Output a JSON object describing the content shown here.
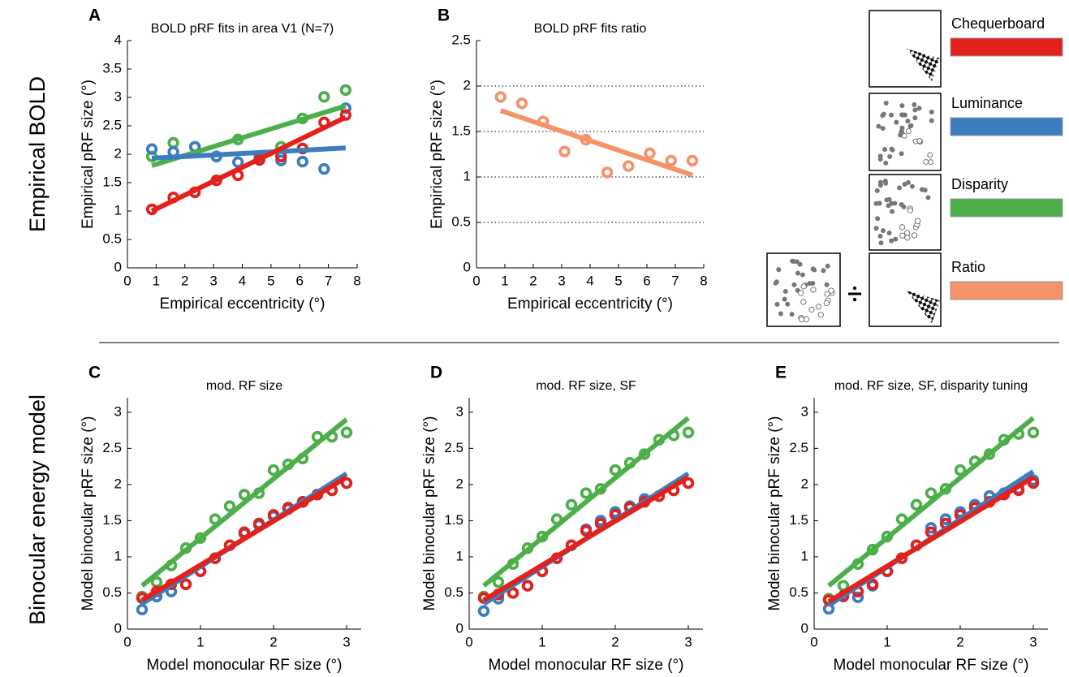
{
  "row_labels": [
    "Empirical BOLD",
    "Binocular energy model"
  ],
  "chart_data": [
    {
      "type": "scatter",
      "panel": "A",
      "title": "BOLD pRF fits in area V1 (N=7)",
      "x_label": "Empirical eccentricity (°)",
      "y_label": "Empirical pRF size (°)",
      "x": [
        0.85,
        1.6,
        2.35,
        3.1,
        3.85,
        4.6,
        5.35,
        6.1,
        6.85,
        7.6
      ],
      "fit_x": [
        0.85,
        7.6
      ],
      "series": [
        {
          "name": "Chequerboard",
          "color": "#e3201b",
          "values": [
            1.03,
            1.24,
            1.33,
            1.54,
            1.63,
            1.9,
            1.96,
            2.1,
            2.56,
            2.69
          ],
          "fit": [
            1.0,
            2.65
          ]
        },
        {
          "name": "Luminance",
          "color": "#3a7ebf",
          "values": [
            2.09,
            2.04,
            2.13,
            1.96,
            1.86,
            1.94,
            1.89,
            1.87,
            1.74,
            2.81
          ],
          "fit": [
            1.93,
            2.11
          ]
        },
        {
          "name": "Disparity",
          "color": "#4daf4a",
          "values": [
            1.96,
            2.2,
            2.13,
            1.96,
            2.26,
            1.96,
            2.13,
            2.63,
            3.01,
            3.13
          ],
          "fit": [
            1.8,
            2.85
          ]
        }
      ],
      "xlim": [
        0,
        8
      ],
      "ylim": [
        0,
        4
      ],
      "xticks": [
        0,
        1,
        2,
        3,
        4,
        5,
        6,
        7,
        8
      ],
      "yticks": [
        0,
        0.5,
        1,
        1.5,
        2,
        2.5,
        3,
        3.5,
        4
      ],
      "grid": false
    },
    {
      "type": "scatter",
      "panel": "B",
      "title": "BOLD pRF fits ratio",
      "x_label": "Empirical eccentricity (°)",
      "y_label": "Empirical pRF size (°)",
      "x": [
        0.85,
        1.6,
        2.35,
        3.1,
        3.85,
        4.6,
        5.35,
        6.1,
        6.85,
        7.6
      ],
      "fit_x": [
        0.85,
        7.6
      ],
      "series": [
        {
          "name": "Ratio",
          "color": "#f4926a",
          "values": [
            1.88,
            1.81,
            1.61,
            1.28,
            1.41,
            1.05,
            1.12,
            1.26,
            1.18,
            1.18
          ],
          "fit": [
            1.73,
            1.02
          ]
        }
      ],
      "xlim": [
        0,
        8
      ],
      "ylim": [
        0,
        2.5
      ],
      "xticks": [
        0,
        1,
        2,
        3,
        4,
        5,
        6,
        7,
        8
      ],
      "yticks": [
        0,
        0.5,
        1,
        1.5,
        2,
        2.5
      ],
      "grid": true
    },
    {
      "type": "scatter",
      "panel": "C",
      "title": "mod. RF size",
      "x_label": "Model monocular RF size (°)",
      "y_label": "Model binocular pRF size (°)",
      "x": [
        0.2,
        0.4,
        0.6,
        0.8,
        1.0,
        1.2,
        1.4,
        1.6,
        1.8,
        2.0,
        2.2,
        2.4,
        2.6,
        2.8,
        3.0
      ],
      "fit_x": [
        0.2,
        3.0
      ],
      "series": [
        {
          "color": "#e3201b",
          "values": [
            0.43,
            0.52,
            0.62,
            0.62,
            0.8,
            0.98,
            1.16,
            1.34,
            1.46,
            1.58,
            1.68,
            1.76,
            1.86,
            1.92,
            2.02
          ],
          "fit": [
            0.4,
            2.1
          ]
        },
        {
          "color": "#3a7ebf",
          "values": [
            0.27,
            0.45,
            0.52,
            0.62,
            0.8,
            0.98,
            1.16,
            1.32,
            1.44,
            1.56,
            1.66,
            1.76,
            1.86,
            1.92,
            2.02
          ],
          "fit": [
            0.35,
            2.15
          ]
        },
        {
          "color": "#4daf4a",
          "values": [
            0.45,
            0.65,
            0.88,
            1.12,
            1.26,
            1.52,
            1.7,
            1.86,
            1.88,
            2.2,
            2.28,
            2.36,
            2.66,
            2.66,
            2.72
          ],
          "fit": [
            0.6,
            2.9
          ]
        }
      ],
      "xlim": [
        0,
        3.2
      ],
      "ylim": [
        0,
        3.2
      ],
      "xticks": [
        0,
        1,
        2,
        3
      ],
      "yticks": [
        0,
        0.5,
        1,
        1.5,
        2,
        2.5,
        3
      ],
      "grid": false
    },
    {
      "type": "scatter",
      "panel": "D",
      "title": "mod. RF size, SF",
      "x_label": "Model monocular RF size (°)",
      "y_label": "Model binocular pRF size (°)",
      "x": [
        0.2,
        0.4,
        0.6,
        0.8,
        1.0,
        1.2,
        1.4,
        1.6,
        1.8,
        2.0,
        2.2,
        2.4,
        2.6,
        2.8,
        3.0
      ],
      "fit_x": [
        0.2,
        3.0
      ],
      "series": [
        {
          "color": "#e3201b",
          "values": [
            0.43,
            0.48,
            0.5,
            0.6,
            0.8,
            0.98,
            1.16,
            1.36,
            1.46,
            1.58,
            1.68,
            1.76,
            1.84,
            1.92,
            2.02
          ],
          "fit": [
            0.4,
            2.1
          ]
        },
        {
          "color": "#3a7ebf",
          "values": [
            0.25,
            0.42,
            0.5,
            0.6,
            0.8,
            0.98,
            1.16,
            1.38,
            1.5,
            1.62,
            1.7,
            1.8,
            1.84,
            1.92,
            2.02
          ],
          "fit": [
            0.35,
            2.15
          ]
        },
        {
          "color": "#4daf4a",
          "values": [
            0.45,
            0.65,
            0.9,
            1.12,
            1.28,
            1.52,
            1.72,
            1.88,
            1.94,
            2.2,
            2.3,
            2.42,
            2.62,
            2.68,
            2.72
          ],
          "fit": [
            0.6,
            2.92
          ]
        }
      ],
      "xlim": [
        0,
        3.2
      ],
      "ylim": [
        0,
        3.2
      ],
      "xticks": [
        0,
        1,
        2,
        3
      ],
      "yticks": [
        0,
        0.5,
        1,
        1.5,
        2,
        2.5,
        3
      ],
      "grid": false
    },
    {
      "type": "scatter",
      "panel": "E",
      "title": "mod. RF size, SF, disparity tuning",
      "x_label": "Model monocular RF size (°)",
      "y_label": "Model binocular pRF size (°)",
      "x": [
        0.2,
        0.4,
        0.6,
        0.8,
        1.0,
        1.2,
        1.4,
        1.6,
        1.8,
        2.0,
        2.2,
        2.4,
        2.6,
        2.8,
        3.0
      ],
      "fit_x": [
        0.2,
        3.0
      ],
      "series": [
        {
          "color": "#e3201b",
          "values": [
            0.4,
            0.46,
            0.52,
            0.62,
            0.8,
            0.98,
            1.16,
            1.34,
            1.46,
            1.58,
            1.68,
            1.76,
            1.86,
            1.92,
            2.02
          ],
          "fit": [
            0.38,
            2.1
          ]
        },
        {
          "color": "#3a7ebf",
          "values": [
            0.28,
            0.45,
            0.44,
            0.6,
            0.8,
            0.98,
            1.16,
            1.4,
            1.52,
            1.62,
            1.72,
            1.84,
            1.88,
            1.94,
            2.06
          ],
          "fit": [
            0.33,
            2.18
          ]
        },
        {
          "color": "#4daf4a",
          "values": [
            0.42,
            0.6,
            0.9,
            1.1,
            1.28,
            1.52,
            1.72,
            1.88,
            1.94,
            2.2,
            2.32,
            2.42,
            2.62,
            2.7,
            2.72
          ],
          "fit": [
            0.6,
            2.92
          ]
        }
      ],
      "xlim": [
        0,
        3.2
      ],
      "ylim": [
        0,
        3.2
      ],
      "xticks": [
        0,
        1,
        2,
        3
      ],
      "yticks": [
        0,
        0.5,
        1,
        1.5,
        2,
        2.5,
        3
      ],
      "grid": false
    }
  ]
}
